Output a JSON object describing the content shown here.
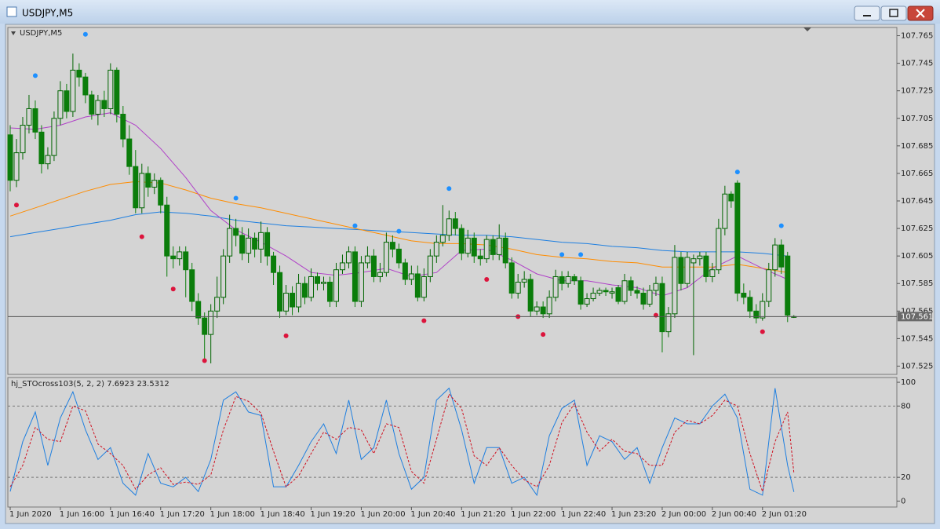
{
  "window": {
    "title": "USDJPY,M5"
  },
  "chart_data": [
    {
      "type": "candlestick",
      "label": "USDJPY,M5",
      "categories": [
        "1 Jun 2020",
        null,
        null,
        null,
        null,
        null,
        null,
        null,
        "1 Jun 16:00",
        null,
        null,
        null,
        null,
        null,
        null,
        null,
        "1 Jun 16:40",
        null,
        null,
        null,
        null,
        null,
        null,
        null,
        "1 Jun 17:20",
        null,
        null,
        null,
        null,
        null,
        null,
        null,
        "1 Jun 18:00",
        null,
        null,
        null,
        null,
        null,
        null,
        null,
        "1 Jun 18:40",
        null,
        null,
        null,
        null,
        null,
        null,
        null,
        "1 Jun 19:20",
        null,
        null,
        null,
        null,
        null,
        null,
        null,
        "1 Jun 20:00",
        null,
        null,
        null,
        null,
        null,
        null,
        null,
        "1 Jun 20:40",
        null,
        null,
        null,
        null,
        null,
        null,
        null,
        "1 Jun 21:20",
        null,
        null,
        null,
        null,
        null,
        null,
        null,
        "1 Jun 22:00",
        null,
        null,
        null,
        null,
        null,
        null,
        null,
        "1 Jun 22:40",
        null,
        null,
        null,
        null,
        null,
        null,
        null,
        "1 Jun 23:20",
        null,
        null,
        null,
        null,
        null,
        null,
        null,
        "2 Jun 00:00",
        null,
        null,
        null,
        null,
        null,
        null,
        null,
        "2 Jun 00:40",
        null,
        null,
        null,
        null,
        null,
        null,
        null,
        "2 Jun 01:20",
        null,
        null,
        null,
        null,
        null
      ],
      "open": [
        107.693,
        107.66,
        107.68,
        107.7,
        107.712,
        107.695,
        107.672,
        107.678,
        107.705,
        107.725,
        107.71,
        107.74,
        107.735,
        107.722,
        107.708,
        107.718,
        107.712,
        107.74,
        107.708,
        107.69,
        107.67,
        107.64,
        107.665,
        107.655,
        107.66,
        107.642,
        107.605,
        107.603,
        107.608,
        107.595,
        107.572,
        107.56,
        107.548,
        107.565,
        107.575,
        107.605,
        107.625,
        107.62,
        107.607,
        107.618,
        107.61,
        107.622,
        107.605,
        107.593,
        107.565,
        107.578,
        107.568,
        107.585,
        107.575,
        107.59,
        107.585,
        107.586,
        107.572,
        107.595,
        107.6,
        107.608,
        107.572,
        107.6,
        107.605,
        107.59,
        107.593,
        107.615,
        107.61,
        107.6,
        107.588,
        107.592,
        107.575,
        107.59,
        107.605,
        107.615,
        107.62,
        107.632,
        107.625,
        107.607,
        107.618,
        107.605,
        107.603,
        107.617,
        107.606,
        107.618,
        107.6,
        107.578,
        107.586,
        107.588,
        107.565,
        107.568,
        107.563,
        107.575,
        107.59,
        107.585,
        107.59,
        107.587,
        107.57,
        107.574,
        107.578,
        107.58,
        107.578,
        107.582,
        107.572,
        107.587,
        107.58,
        107.578,
        107.57,
        107.58,
        107.585,
        107.55,
        107.563,
        107.604,
        107.585,
        107.6,
        107.603,
        107.605,
        107.59,
        107.595,
        107.625,
        107.65,
        107.658,
        107.578,
        107.575,
        107.565,
        107.56,
        107.572,
        107.595,
        107.613,
        107.605,
        107.561
      ],
      "high": [
        107.7,
        107.69,
        107.706,
        107.722,
        107.718,
        107.7,
        107.684,
        107.71,
        107.732,
        107.73,
        107.752,
        107.745,
        107.738,
        107.725,
        107.722,
        107.725,
        107.745,
        107.742,
        107.714,
        107.7,
        107.682,
        107.672,
        107.67,
        107.665,
        107.662,
        107.648,
        107.612,
        107.612,
        107.612,
        107.6,
        107.578,
        107.564,
        107.57,
        107.59,
        107.61,
        107.635,
        107.632,
        107.626,
        107.625,
        107.622,
        107.63,
        107.626,
        107.608,
        107.598,
        107.584,
        107.583,
        107.592,
        107.59,
        107.596,
        107.593,
        107.59,
        107.59,
        107.6,
        107.606,
        107.612,
        107.612,
        107.605,
        107.612,
        107.61,
        107.6,
        107.622,
        107.62,
        107.614,
        107.603,
        107.598,
        107.598,
        107.596,
        107.61,
        107.62,
        107.642,
        107.638,
        107.637,
        107.628,
        107.624,
        107.622,
        107.61,
        107.62,
        107.62,
        107.628,
        107.622,
        107.604,
        107.592,
        107.594,
        107.592,
        107.572,
        107.572,
        107.58,
        107.595,
        107.594,
        107.594,
        107.592,
        107.59,
        107.578,
        107.582,
        107.582,
        107.582,
        107.582,
        107.584,
        107.592,
        107.59,
        107.583,
        107.582,
        107.584,
        107.59,
        107.59,
        107.568,
        107.613,
        107.608,
        107.608,
        107.606,
        107.608,
        107.608,
        107.6,
        107.632,
        107.656,
        107.652,
        107.66,
        107.585,
        107.58,
        107.57,
        107.578,
        107.6,
        107.618,
        107.617,
        107.608,
        107.562
      ],
      "low": [
        107.652,
        107.655,
        107.675,
        107.694,
        107.69,
        107.665,
        107.668,
        107.674,
        107.7,
        107.705,
        107.706,
        107.728,
        107.716,
        107.704,
        107.7,
        107.706,
        107.708,
        107.702,
        107.684,
        107.664,
        107.636,
        107.636,
        107.648,
        107.65,
        107.636,
        107.59,
        107.596,
        107.598,
        107.575,
        107.565,
        107.555,
        107.53,
        107.527,
        107.56,
        107.57,
        107.6,
        107.612,
        107.602,
        107.6,
        107.604,
        107.6,
        107.598,
        107.584,
        107.56,
        107.562,
        107.562,
        107.564,
        107.57,
        107.572,
        107.58,
        107.58,
        107.568,
        107.568,
        107.592,
        107.596,
        107.568,
        107.568,
        107.596,
        107.586,
        107.586,
        107.59,
        107.604,
        107.596,
        107.584,
        107.584,
        107.572,
        107.572,
        107.586,
        107.6,
        107.612,
        107.616,
        107.62,
        107.602,
        107.604,
        107.6,
        107.598,
        107.6,
        107.602,
        107.602,
        107.596,
        107.574,
        107.574,
        107.582,
        107.561,
        107.562,
        107.56,
        107.56,
        107.572,
        107.58,
        107.582,
        107.584,
        107.566,
        107.568,
        107.572,
        107.576,
        107.576,
        107.574,
        107.57,
        107.57,
        107.576,
        107.574,
        107.566,
        107.568,
        107.576,
        107.535,
        107.546,
        107.56,
        107.58,
        107.582,
        107.533,
        107.598,
        107.586,
        107.586,
        107.592,
        107.62,
        107.64,
        107.572,
        107.57,
        107.56,
        107.556,
        107.558,
        107.568,
        107.59,
        107.592,
        107.557,
        107.56
      ],
      "close": [
        107.66,
        107.68,
        107.7,
        107.712,
        107.695,
        107.672,
        107.678,
        107.705,
        107.725,
        107.71,
        107.74,
        107.735,
        107.722,
        107.708,
        107.718,
        107.712,
        107.74,
        107.708,
        107.69,
        107.67,
        107.64,
        107.665,
        107.655,
        107.66,
        107.642,
        107.605,
        107.603,
        107.608,
        107.595,
        107.572,
        107.56,
        107.548,
        107.565,
        107.575,
        107.605,
        107.625,
        107.62,
        107.607,
        107.618,
        107.61,
        107.622,
        107.605,
        107.593,
        107.565,
        107.578,
        107.568,
        107.585,
        107.575,
        107.59,
        107.585,
        107.586,
        107.572,
        107.595,
        107.6,
        107.608,
        107.572,
        107.6,
        107.605,
        107.59,
        107.593,
        107.615,
        107.61,
        107.6,
        107.588,
        107.592,
        107.575,
        107.59,
        107.605,
        107.615,
        107.62,
        107.632,
        107.625,
        107.607,
        107.618,
        107.605,
        107.603,
        107.617,
        107.606,
        107.618,
        107.6,
        107.578,
        107.586,
        107.588,
        107.565,
        107.568,
        107.563,
        107.575,
        107.59,
        107.585,
        107.59,
        107.587,
        107.57,
        107.574,
        107.578,
        107.58,
        107.579,
        107.579,
        107.572,
        107.587,
        107.58,
        107.578,
        107.57,
        107.58,
        107.585,
        107.55,
        107.563,
        107.604,
        107.585,
        107.604,
        107.603,
        107.605,
        107.59,
        107.595,
        107.625,
        107.65,
        107.645,
        107.578,
        107.575,
        107.565,
        107.56,
        107.572,
        107.595,
        107.613,
        107.597,
        107.562,
        107.561
      ],
      "up_color": "#006400",
      "down_color": "#0b7d0b",
      "moving_averages": [
        {
          "color": "#1e7fe0",
          "x": [
            0,
            4,
            8,
            12,
            16,
            20,
            24,
            28,
            32,
            36,
            40,
            44,
            48,
            52,
            56,
            60,
            64,
            68,
            72,
            76,
            80,
            84,
            88,
            92,
            96,
            100,
            104,
            108,
            112,
            116,
            120,
            124
          ],
          "values": [
            107.619,
            107.622,
            107.625,
            107.628,
            107.631,
            107.635,
            107.637,
            107.636,
            107.634,
            107.631,
            107.629,
            107.627,
            107.626,
            107.625,
            107.624,
            107.623,
            107.622,
            107.621,
            107.62,
            107.62,
            107.619,
            107.617,
            107.615,
            107.614,
            107.612,
            107.611,
            107.609,
            107.608,
            107.608,
            107.608,
            107.607,
            107.605
          ]
        },
        {
          "color": "#ff8c00",
          "x": [
            0,
            4,
            8,
            12,
            16,
            20,
            24,
            28,
            32,
            36,
            40,
            44,
            48,
            52,
            56,
            60,
            64,
            68,
            72,
            76,
            80,
            84,
            88,
            92,
            96,
            100,
            104,
            108,
            112,
            116,
            120,
            124
          ],
          "values": [
            107.634,
            107.64,
            107.646,
            107.652,
            107.657,
            107.659,
            107.658,
            107.653,
            107.647,
            107.643,
            107.64,
            107.636,
            107.632,
            107.628,
            107.624,
            107.62,
            107.616,
            107.614,
            107.614,
            107.613,
            107.61,
            107.606,
            107.604,
            107.603,
            107.601,
            107.6,
            107.597,
            107.597,
            107.597,
            107.599,
            107.596,
            107.593
          ]
        },
        {
          "color": "#b040c8",
          "x": [
            0,
            4,
            8,
            12,
            16,
            20,
            24,
            28,
            32,
            36,
            40,
            44,
            48,
            52,
            56,
            60,
            64,
            68,
            72,
            76,
            80,
            84,
            88,
            92,
            96,
            100,
            104,
            108,
            112,
            116,
            120,
            124
          ],
          "values": [
            107.698,
            107.697,
            107.7,
            107.706,
            107.709,
            107.7,
            107.683,
            107.662,
            107.638,
            107.624,
            107.615,
            107.605,
            107.593,
            107.591,
            107.593,
            107.596,
            107.59,
            107.593,
            107.609,
            107.61,
            107.602,
            107.592,
            107.587,
            107.587,
            107.584,
            107.582,
            107.576,
            107.582,
            107.596,
            107.605,
            107.596,
            107.588
          ]
        }
      ],
      "markers": [
        {
          "color": "#1e90ff",
          "x": [
            4,
            12,
            36,
            55,
            62,
            70,
            88,
            91,
            116,
            123
          ],
          "values": [
            107.736,
            107.766,
            107.647,
            107.627,
            107.623,
            107.654,
            107.606,
            107.606,
            107.666,
            107.627
          ]
        },
        {
          "color": "#dc143c",
          "x": [
            1,
            21,
            26,
            31,
            44,
            66,
            76,
            81,
            85,
            103,
            120
          ],
          "values": [
            107.642,
            107.619,
            107.581,
            107.529,
            107.547,
            107.558,
            107.588,
            107.561,
            107.548,
            107.562,
            107.55
          ]
        }
      ],
      "last_price": 107.561,
      "ylim": [
        107.519,
        107.771
      ],
      "yticks": [
        107.525,
        107.545,
        107.565,
        107.585,
        107.605,
        107.625,
        107.645,
        107.665,
        107.685,
        107.705,
        107.725,
        107.745,
        107.765
      ]
    },
    {
      "type": "line",
      "indicator_name": "hj_STOcross103(5, 2, 2)",
      "x": [
        0,
        2,
        4,
        6,
        8,
        10,
        12,
        14,
        16,
        18,
        20,
        22,
        24,
        26,
        28,
        30,
        32,
        34,
        36,
        38,
        40,
        42,
        44,
        46,
        48,
        50,
        52,
        54,
        56,
        58,
        60,
        62,
        64,
        66,
        68,
        70,
        72,
        74,
        76,
        78,
        80,
        82,
        84,
        86,
        88,
        90,
        92,
        94,
        96,
        98,
        100,
        102,
        104,
        106,
        108,
        110,
        112,
        114,
        116,
        118,
        120,
        122,
        124,
        125
      ],
      "series": [
        {
          "color": "#1e7fe0",
          "style": "solid",
          "values": [
            8,
            50,
            75,
            30,
            70,
            92,
            60,
            35,
            45,
            15,
            5,
            40,
            15,
            12,
            20,
            8,
            35,
            85,
            92,
            75,
            72,
            12,
            12,
            30,
            50,
            65,
            40,
            85,
            35,
            45,
            85,
            40,
            10,
            20,
            85,
            95,
            60,
            15,
            45,
            45,
            15,
            20,
            5,
            55,
            78,
            85,
            30,
            55,
            50,
            35,
            45,
            15,
            45,
            70,
            65,
            65,
            80,
            90,
            70,
            10,
            5,
            95,
            30,
            7.6923
          ]
        },
        {
          "color": "#d01020",
          "style": "dashed",
          "values": [
            12,
            30,
            62,
            52,
            50,
            80,
            76,
            48,
            40,
            30,
            10,
            22,
            28,
            14,
            16,
            14,
            22,
            60,
            88,
            84,
            74,
            42,
            12,
            21,
            40,
            58,
            52,
            62,
            60,
            40,
            65,
            62,
            25,
            15,
            52,
            90,
            78,
            38,
            30,
            45,
            30,
            18,
            12,
            30,
            66,
            82,
            58,
            42,
            52,
            42,
            40,
            30,
            30,
            58,
            68,
            65,
            72,
            85,
            80,
            40,
            8,
            50,
            75,
            23.5312
          ]
        }
      ],
      "levels": [
        20,
        80
      ],
      "ylim": [
        -5,
        104
      ],
      "yticks": [
        0,
        20,
        80,
        100
      ]
    }
  ]
}
